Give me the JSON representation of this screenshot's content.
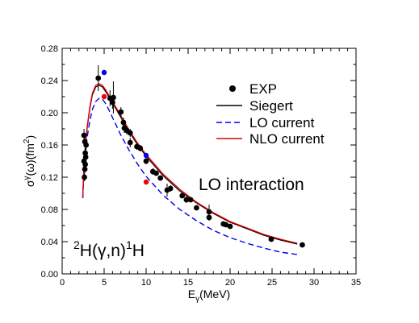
{
  "chart_data": {
    "type": "scatter",
    "title": "",
    "xlabel": {
      "main": "E",
      "sub": "γ",
      "rest": "(MeV)"
    },
    "ylabel": {
      "p1": "σ",
      "sup1": "γ",
      "p2": "(ω)(fm",
      "sup2": "2",
      "p3": ")"
    },
    "xlim": [
      0,
      35
    ],
    "ylim": [
      0,
      0.28
    ],
    "xticks": [
      0,
      5,
      10,
      15,
      20,
      25,
      30,
      35
    ],
    "yticks": [
      0.0,
      0.04,
      0.08,
      0.12,
      0.16,
      0.2,
      0.24,
      0.28
    ],
    "xtick_labels": [
      "0",
      "5",
      "10",
      "15",
      "20",
      "25",
      "30",
      "35"
    ],
    "ytick_labels": [
      "0.00",
      "0.04",
      "0.08",
      "0.12",
      "0.16",
      "0.20",
      "0.24",
      "0.28"
    ],
    "grid": false,
    "legend_placement": "upper-right",
    "legend": {
      "exp": "EXP",
      "siegert": "Siegert",
      "lo": "LO current",
      "nlo": "NLO current"
    },
    "annotations": {
      "interaction": "LO interaction",
      "reaction": {
        "s1": "2",
        "t1": "H(γ,n)",
        "s2": "1",
        "t2": "H"
      }
    },
    "colors": {
      "exp": "#000000",
      "siegert": "#000000",
      "lo": "#0000ee",
      "nlo": "#dd0000",
      "blue_points": "#0000ee",
      "red_points": "#ee0000"
    },
    "series": [
      {
        "name": "EXP",
        "kind": "points",
        "points": [
          [
            2.6,
            0.172,
            0.008
          ],
          [
            2.7,
            0.164,
            0.006
          ],
          [
            2.75,
            0.15,
            0.006
          ],
          [
            2.8,
            0.145,
            0.005
          ],
          [
            2.6,
            0.14,
            0.005
          ],
          [
            2.7,
            0.13,
            0.005
          ],
          [
            2.65,
            0.12,
            0.005
          ],
          [
            2.75,
            0.136,
            0.004
          ],
          [
            2.85,
            0.16,
            0.006
          ],
          [
            4.3,
            0.243,
            0.016
          ],
          [
            5.7,
            0.218,
            0.01
          ],
          [
            6.1,
            0.219,
            0.02
          ],
          [
            6.0,
            0.213,
            0.008
          ],
          [
            7.0,
            0.201,
            0.006
          ],
          [
            7.3,
            0.188,
            0.006
          ],
          [
            7.4,
            0.181,
            0.006
          ],
          [
            7.7,
            0.178,
            0.005
          ],
          [
            8.1,
            0.175,
            0.005
          ],
          [
            8.1,
            0.163,
            0.006
          ],
          [
            8.9,
            0.158,
            0.004
          ],
          [
            9.3,
            0.156,
            0.004
          ],
          [
            10.0,
            0.14,
            0.004
          ],
          [
            10.8,
            0.127,
            0.004
          ],
          [
            11.2,
            0.125,
            0.003
          ],
          [
            11.7,
            0.119,
            0.003
          ],
          [
            12.5,
            0.104,
            0.008
          ],
          [
            12.9,
            0.106,
            0.004
          ],
          [
            14.3,
            0.097,
            0.003
          ],
          [
            14.8,
            0.092,
            0.004
          ],
          [
            15.3,
            0.092,
            0.003
          ],
          [
            16.0,
            0.082,
            0.003
          ],
          [
            17.5,
            0.077,
            0.009
          ],
          [
            17.5,
            0.07,
            0.004
          ],
          [
            19.2,
            0.062,
            0.003
          ],
          [
            19.5,
            0.061,
            0.003
          ],
          [
            20.0,
            0.059,
            0.003
          ],
          [
            24.9,
            0.043,
            0.003
          ],
          [
            28.6,
            0.036,
            0.003
          ]
        ]
      },
      {
        "name": "Siegert",
        "kind": "line",
        "x": [
          2.45,
          2.6,
          2.8,
          3.0,
          3.3,
          3.6,
          4.0,
          4.4,
          4.8,
          5.2,
          5.6,
          6.0,
          7.0,
          8.0,
          9.0,
          10.0,
          12.0,
          14.0,
          16.0,
          18.0,
          20.0,
          22.0,
          24.0,
          26.0,
          28.0
        ],
        "y": [
          0.094,
          0.135,
          0.163,
          0.183,
          0.205,
          0.222,
          0.232,
          0.234,
          0.232,
          0.226,
          0.219,
          0.212,
          0.194,
          0.176,
          0.16,
          0.146,
          0.122,
          0.103,
          0.088,
          0.075,
          0.064,
          0.056,
          0.048,
          0.042,
          0.037
        ]
      },
      {
        "name": "LO current",
        "kind": "dashed",
        "x": [
          2.45,
          2.6,
          2.8,
          3.0,
          3.3,
          3.6,
          4.0,
          4.4,
          4.8,
          5.2,
          5.6,
          6.0,
          7.0,
          8.0,
          9.0,
          10.0,
          12.0,
          14.0,
          16.0,
          18.0,
          20.0,
          22.0,
          24.0,
          26.0,
          28.0
        ],
        "y": [
          0.094,
          0.128,
          0.153,
          0.171,
          0.19,
          0.204,
          0.214,
          0.218,
          0.217,
          0.211,
          0.203,
          0.194,
          0.172,
          0.153,
          0.136,
          0.121,
          0.098,
          0.08,
          0.066,
          0.054,
          0.045,
          0.038,
          0.032,
          0.027,
          0.024
        ]
      },
      {
        "name": "NLO current",
        "kind": "line",
        "x": [
          2.45,
          2.6,
          2.8,
          3.0,
          3.3,
          3.6,
          4.0,
          4.4,
          4.8,
          5.2,
          5.6,
          6.0,
          7.0,
          8.0,
          9.0,
          10.0,
          12.0,
          14.0,
          16.0,
          18.0,
          20.0,
          22.0,
          24.0,
          26.0,
          28.0
        ],
        "y": [
          0.094,
          0.136,
          0.164,
          0.184,
          0.207,
          0.224,
          0.234,
          0.236,
          0.234,
          0.228,
          0.221,
          0.214,
          0.196,
          0.178,
          0.162,
          0.148,
          0.124,
          0.105,
          0.089,
          0.076,
          0.065,
          0.057,
          0.049,
          0.043,
          0.038
        ]
      },
      {
        "name": "",
        "kind": "marker-blue",
        "points": [
          [
            5.0,
            0.25
          ],
          [
            10.0,
            0.147
          ]
        ]
      },
      {
        "name": "",
        "kind": "marker-red",
        "points": [
          [
            5.0,
            0.22
          ],
          [
            10.0,
            0.114
          ]
        ]
      }
    ]
  }
}
